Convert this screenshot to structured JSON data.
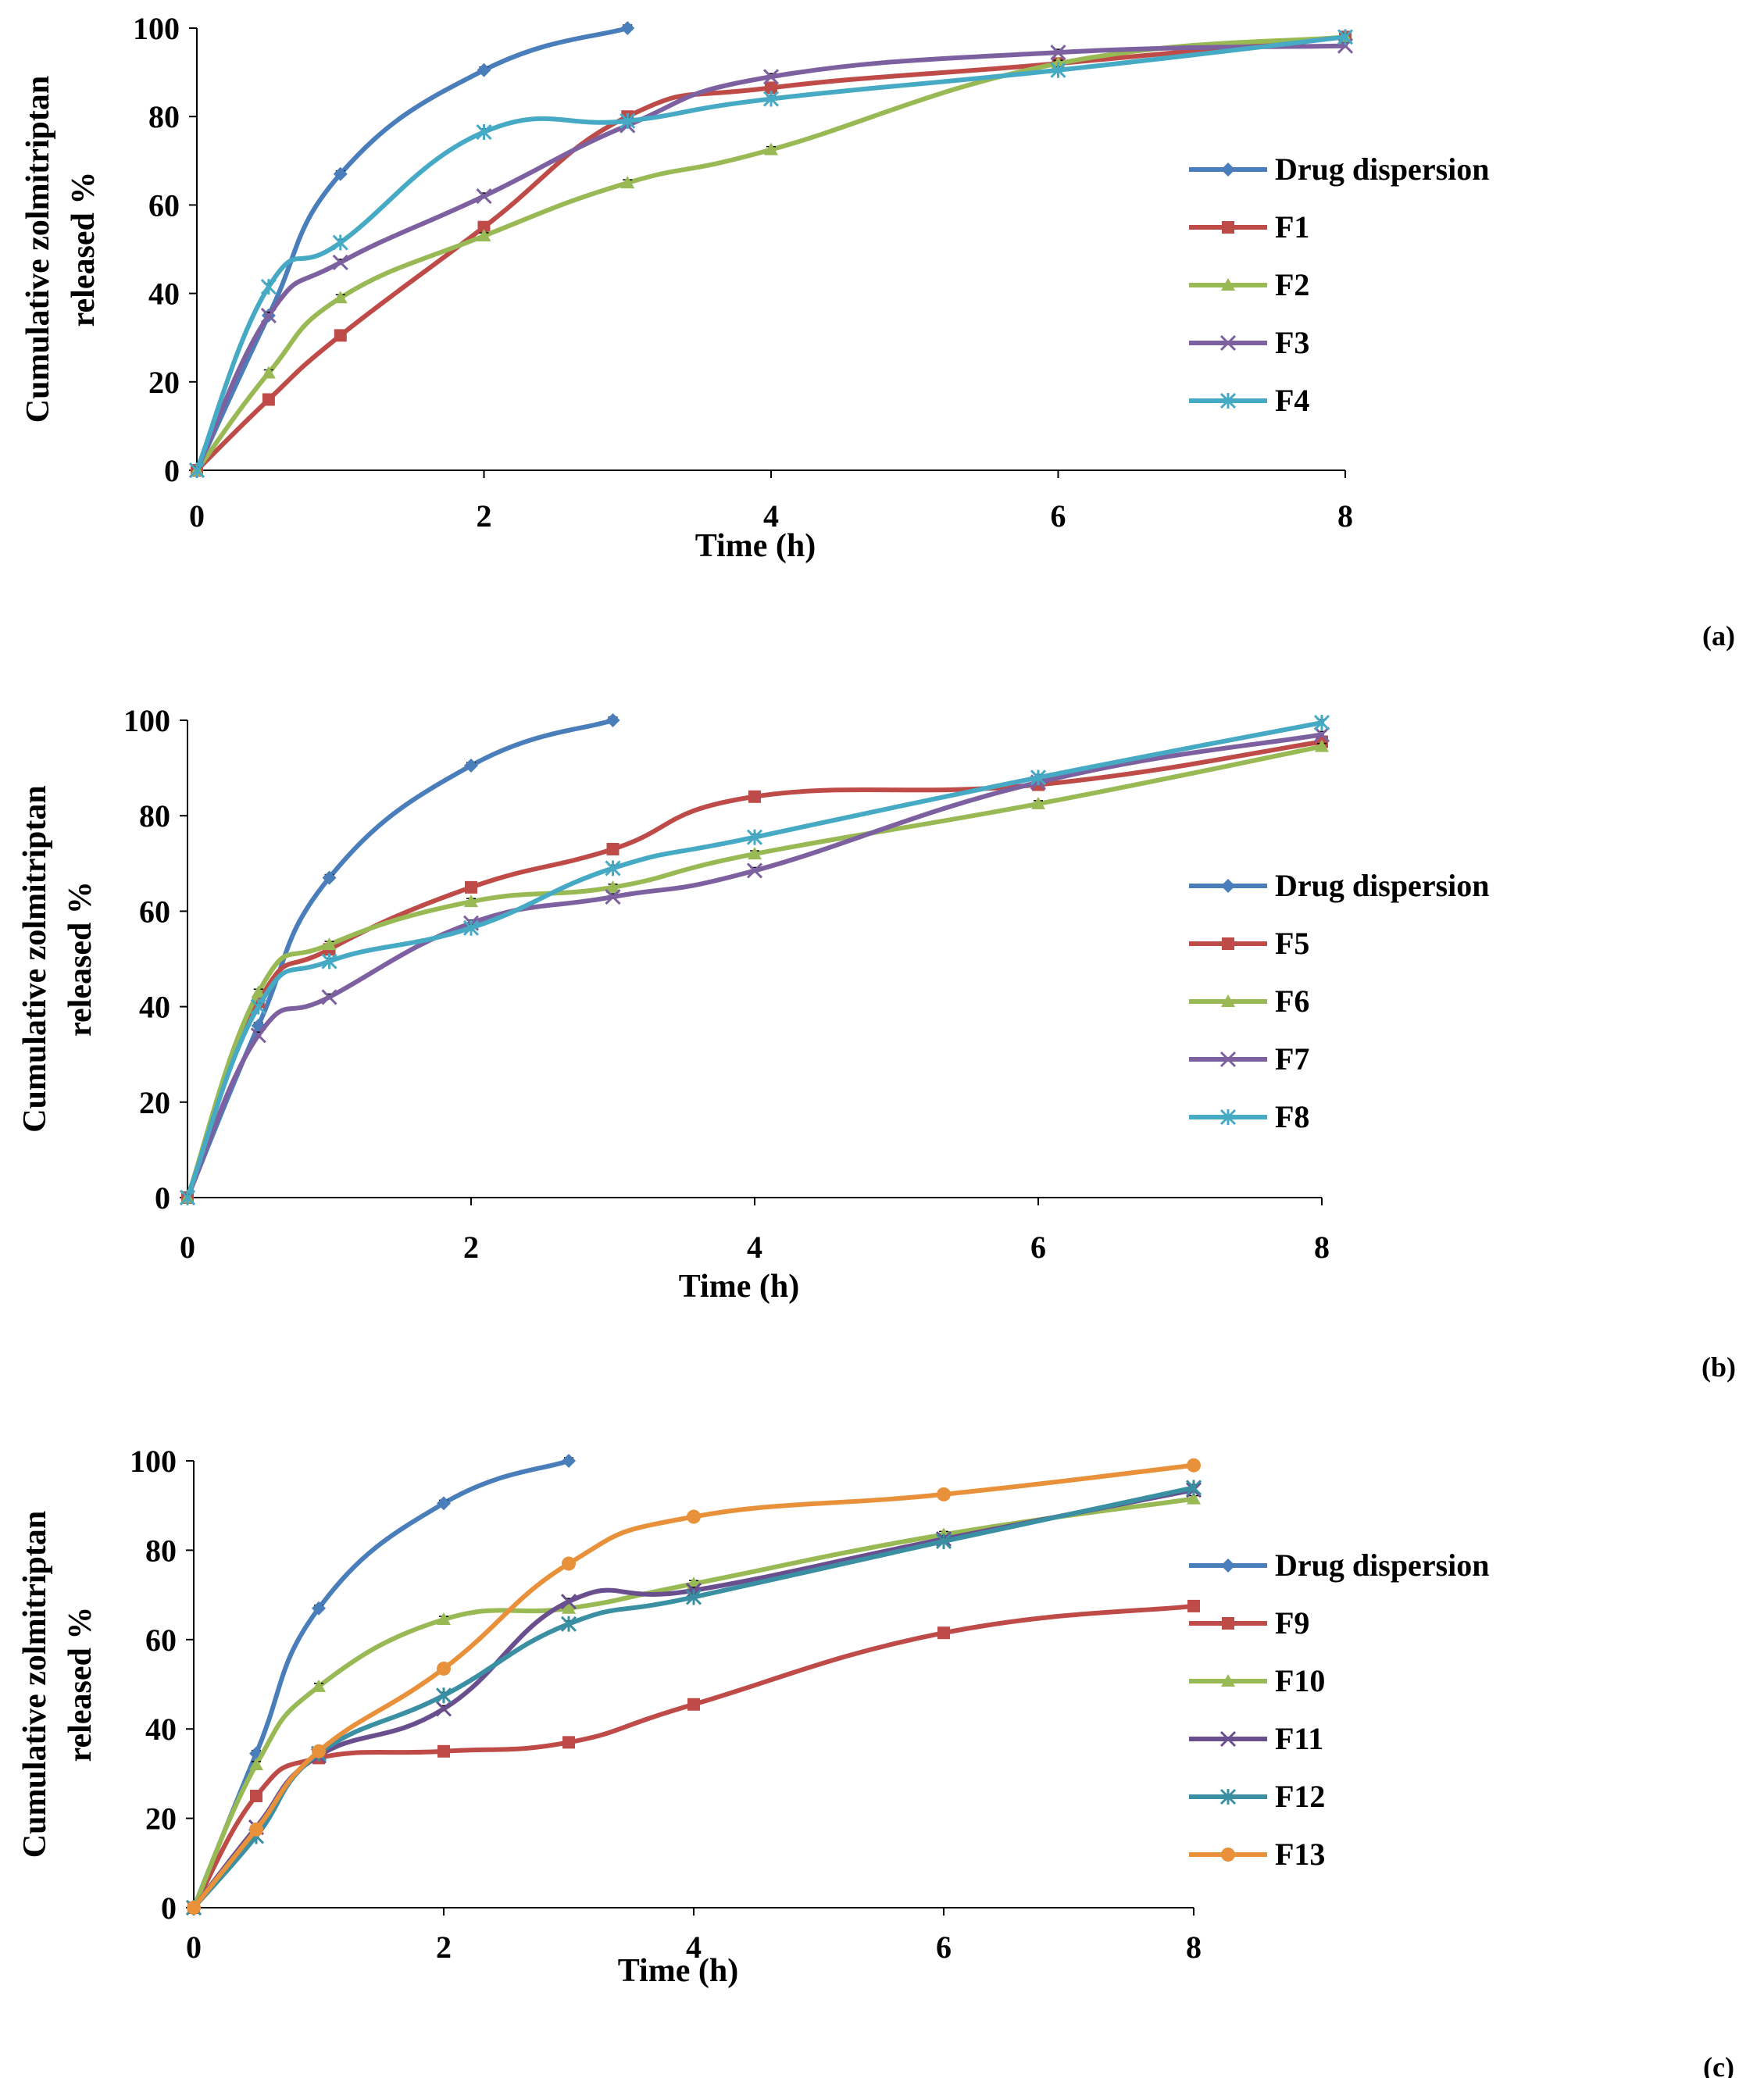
{
  "chart_data": [
    {
      "type": "line",
      "panel_label": "(a)",
      "xlabel": "Time (h)",
      "ylabel": [
        "Cumulative zolmitriptan",
        "released %"
      ],
      "xlim": [
        0,
        8
      ],
      "ylim": [
        0,
        100
      ],
      "x_ticks": [
        "0",
        "2",
        "4",
        "6",
        "8"
      ],
      "y_ticks": [
        "0",
        "20",
        "40",
        "60",
        "80",
        "100"
      ],
      "grid": false,
      "legend_position": "right",
      "series": [
        {
          "name": "Drug dispersion",
          "color": "#4a7ebb",
          "marker": "diamond",
          "x": [
            0,
            0.5,
            1,
            2,
            3
          ],
          "y": [
            0,
            35,
            67,
            90.5,
            100
          ]
        },
        {
          "name": "F1",
          "color": "#be4b48",
          "marker": "square",
          "x": [
            0,
            0.5,
            1,
            2,
            3,
            4,
            6,
            8
          ],
          "y": [
            0,
            16,
            30.5,
            55,
            80,
            86.5,
            92,
            98
          ]
        },
        {
          "name": "F2",
          "color": "#98b954",
          "marker": "triangle",
          "x": [
            0,
            0.5,
            1,
            2,
            3,
            4,
            6,
            8
          ],
          "y": [
            0,
            22,
            39,
            53,
            65,
            72.5,
            92,
            98
          ]
        },
        {
          "name": "F3",
          "color": "#7d60a0",
          "marker": "x",
          "x": [
            0,
            0.5,
            1,
            2,
            3,
            4,
            6,
            8
          ],
          "y": [
            0,
            35,
            47,
            62,
            78,
            89,
            94.5,
            96
          ]
        },
        {
          "name": "F4",
          "color": "#46aac5",
          "marker": "star",
          "x": [
            0,
            0.5,
            1,
            2,
            3,
            4,
            6,
            8
          ],
          "y": [
            0,
            41.5,
            51.5,
            76.5,
            79,
            84,
            90.5,
            98
          ]
        }
      ]
    },
    {
      "type": "line",
      "panel_label": "(b)",
      "xlabel": "Time (h)",
      "ylabel": [
        "Cumulative zolmitriptan",
        "released %"
      ],
      "xlim": [
        0,
        8
      ],
      "ylim": [
        0,
        100
      ],
      "x_ticks": [
        "0",
        "2",
        "4",
        "6",
        "8"
      ],
      "y_ticks": [
        "0",
        "20",
        "40",
        "60",
        "80",
        "100"
      ],
      "grid": false,
      "legend_position": "right",
      "series": [
        {
          "name": "Drug dispersion",
          "color": "#4a7ebb",
          "marker": "diamond",
          "x": [
            0,
            0.5,
            1,
            2,
            3
          ],
          "y": [
            0,
            36,
            67,
            90.5,
            100
          ]
        },
        {
          "name": "F5",
          "color": "#be4b48",
          "marker": "square",
          "x": [
            0,
            0.5,
            1,
            2,
            3,
            4,
            6,
            8
          ],
          "y": [
            0,
            41,
            52,
            65,
            73,
            84,
            86.5,
            95.5
          ]
        },
        {
          "name": "F6",
          "color": "#98b954",
          "marker": "triangle",
          "x": [
            0,
            0.5,
            1,
            2,
            3,
            4,
            6,
            8
          ],
          "y": [
            0,
            43,
            53,
            62,
            65,
            72,
            82.5,
            94.5
          ]
        },
        {
          "name": "F7",
          "color": "#7d60a0",
          "marker": "x",
          "x": [
            0,
            0.5,
            1,
            2,
            3,
            4,
            6,
            8
          ],
          "y": [
            0,
            34,
            42,
            57.5,
            63,
            68.5,
            87,
            97
          ]
        },
        {
          "name": "F8",
          "color": "#46aac5",
          "marker": "star",
          "x": [
            0,
            0.5,
            1,
            2,
            3,
            4,
            6,
            8
          ],
          "y": [
            0,
            40,
            49.5,
            56.5,
            69,
            75.5,
            88,
            99.5
          ]
        }
      ]
    },
    {
      "type": "line",
      "panel_label": "(c)",
      "xlabel": "Time (h)",
      "ylabel": [
        "Cumulative zolmitriptan",
        "released %"
      ],
      "xlim": [
        0,
        8
      ],
      "ylim": [
        0,
        100
      ],
      "x_ticks": [
        "0",
        "2",
        "4",
        "6",
        "8"
      ],
      "y_ticks": [
        "0",
        "20",
        "40",
        "60",
        "80",
        "100"
      ],
      "grid": false,
      "legend_position": "right",
      "series": [
        {
          "name": "Drug dispersion",
          "color": "#4a7ebb",
          "marker": "diamond",
          "x": [
            0,
            0.5,
            1,
            2,
            3
          ],
          "y": [
            0,
            34.5,
            67,
            90.5,
            100
          ]
        },
        {
          "name": "F9",
          "color": "#be4b48",
          "marker": "square",
          "x": [
            0,
            0.5,
            1,
            2,
            3,
            4,
            6,
            8
          ],
          "y": [
            0,
            25,
            33.5,
            35,
            37,
            45.5,
            61.5,
            67.5
          ]
        },
        {
          "name": "F10",
          "color": "#98b954",
          "marker": "triangle",
          "x": [
            0,
            0.5,
            1,
            2,
            3,
            4,
            6,
            8
          ],
          "y": [
            0,
            32,
            49.5,
            64.5,
            67,
            72.5,
            83.5,
            91.5
          ]
        },
        {
          "name": "F11",
          "color": "#6a4f8f",
          "marker": "x",
          "x": [
            0,
            0.5,
            1,
            2,
            3,
            4,
            6,
            8
          ],
          "y": [
            0,
            18,
            34,
            44.5,
            68.5,
            71,
            82.5,
            93.5
          ]
        },
        {
          "name": "F12",
          "color": "#3a8fa3",
          "marker": "star",
          "x": [
            0,
            0.5,
            1,
            2,
            3,
            4,
            6,
            8
          ],
          "y": [
            0,
            16,
            34.5,
            47.5,
            63.5,
            69.5,
            82,
            94
          ]
        },
        {
          "name": "F13",
          "color": "#e8913a",
          "marker": "circle",
          "x": [
            0,
            0.5,
            1,
            2,
            3,
            4,
            6,
            8
          ],
          "y": [
            0,
            17.5,
            35,
            53.5,
            77,
            87.5,
            92.5,
            99
          ]
        }
      ]
    }
  ]
}
